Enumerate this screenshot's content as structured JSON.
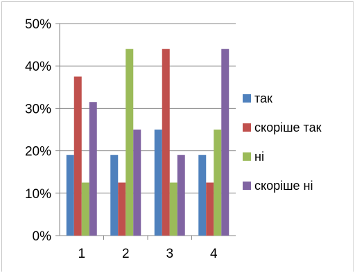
{
  "chart_data": {
    "type": "bar",
    "categories": [
      "1",
      "2",
      "3",
      "4"
    ],
    "series": [
      {
        "name": "так",
        "color": "#4f81bd",
        "values": [
          0.19,
          0.19,
          0.25,
          0.19
        ]
      },
      {
        "name": "скоріше так",
        "color": "#c0504d",
        "values": [
          0.375,
          0.125,
          0.44,
          0.125
        ]
      },
      {
        "name": "ні",
        "color": "#9bbb59",
        "values": [
          0.125,
          0.44,
          0.125,
          0.25
        ]
      },
      {
        "name": "скоріше ні",
        "color": "#8064a2",
        "values": [
          0.315,
          0.25,
          0.19,
          0.44
        ]
      }
    ],
    "y_ticks": [
      "0%",
      "10%",
      "20%",
      "30%",
      "40%",
      "50%"
    ],
    "ylim": [
      0,
      0.5
    ],
    "grid": true,
    "legend_position": "right",
    "title": "",
    "xlabel": "",
    "ylabel": ""
  }
}
